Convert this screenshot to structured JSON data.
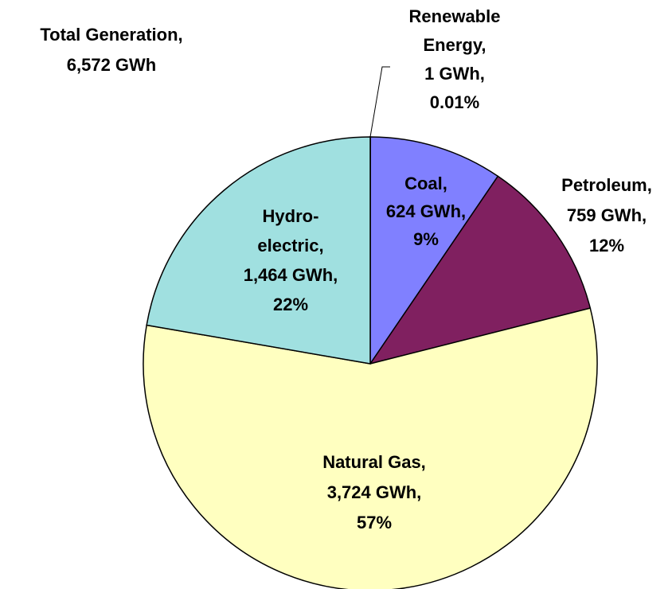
{
  "chart_data": {
    "type": "pie",
    "title_lines": [
      "Total Generation,",
      "6,572 GWh"
    ],
    "category_lines": [
      [
        "Renewable",
        "Energy,"
      ],
      [
        "Coal,"
      ],
      [
        "Petroleum,"
      ],
      [
        "Natural Gas,"
      ],
      [
        "Hydro-",
        "electric,"
      ]
    ],
    "values": [
      1,
      624,
      759,
      3724,
      1464
    ],
    "value_labels": [
      "1 GWh,",
      "624 GWh,",
      "759 GWh,",
      "3,724 GWh,",
      "1,464 GWh,"
    ],
    "percent_labels": [
      "0.01%",
      "9%",
      "12%",
      "57%",
      "22%"
    ],
    "colors": [
      "#ccffff",
      "#8080ff",
      "#802060",
      "#ffffc0",
      "#a0e0e0"
    ]
  }
}
